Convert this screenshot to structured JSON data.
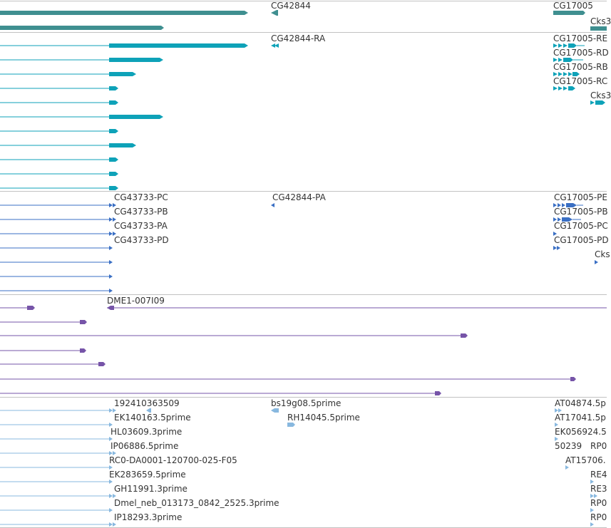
{
  "tracks": [
    {
      "name": "gene-track",
      "color": "#3f8f90",
      "labels": [
        "CG42844",
        "CG17005",
        "Cks3"
      ]
    },
    {
      "name": "transcript-track",
      "color": "#0ea2b8",
      "labels": [
        "CG42844-RA",
        "CG17005-RE",
        "CG17005-RD",
        "CG17005-RB",
        "CG17005-RC",
        "Cks3"
      ]
    },
    {
      "name": "protein-track",
      "color": "#3a6fc4",
      "labels": [
        "CG43733-PC",
        "CG43733-PB",
        "CG43733-PA",
        "CG43733-PD",
        "CG42844-PA",
        "CG17005-PE",
        "CG17005-PB",
        "CG17005-PC",
        "CG17005-PD",
        "Cks"
      ]
    },
    {
      "name": "clone-track",
      "color": "#7654a8",
      "labels": [
        "DME1-007I09"
      ]
    },
    {
      "name": "est-track",
      "color": "#88b8df",
      "labels": [
        "192410363509",
        "EK140163.5prime",
        "HL03609.3prime",
        "IP06886.5prime",
        "RC0-DA0001-120700-025-F05",
        "EK283659.5prime",
        "GH11991.3prime",
        "Dmel_neb_013173_0842_2525.3prime",
        "IP18293.3prime",
        "bs19g08.5prime",
        "RH14045.5prime",
        "AT04874.5p",
        "AT17041.5p",
        "EK056924.5",
        "50239",
        "RP0",
        "AT15706.",
        "RE4",
        "RE3",
        "RP0",
        "RP0"
      ]
    }
  ]
}
